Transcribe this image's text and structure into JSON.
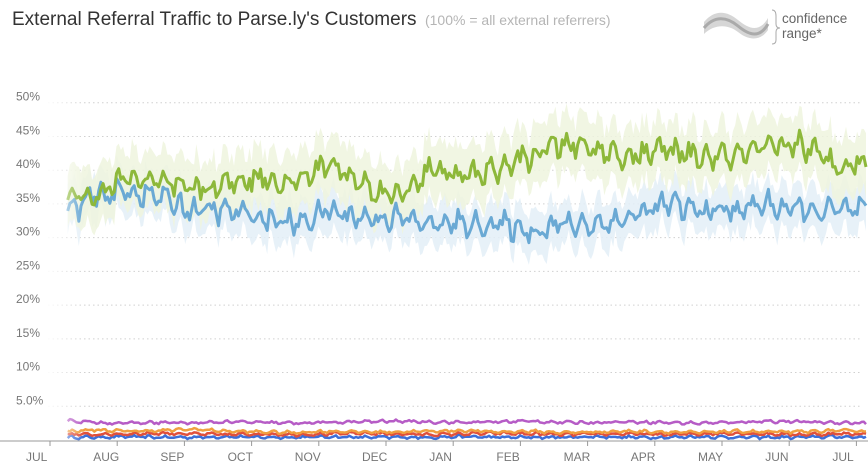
{
  "header": {
    "title": "External Referral Traffic to Parse.ly's Customers",
    "subtitle": "(100% = all external referrers)"
  },
  "legend": {
    "label_line1": "confidence",
    "label_line2": "range*",
    "icon": "wave-band-icon"
  },
  "colors": {
    "green": "#8db83a",
    "green_band": "#eef4de",
    "blue": "#6aa9d4",
    "blue_band": "#e3eff7",
    "purple": "#b65cc6",
    "orange": "#f0a040",
    "red": "#e0503c",
    "darkblue": "#3d6fd8",
    "grid": "#d0d0d0",
    "axis": "#999999"
  },
  "chart_data": {
    "type": "line",
    "title": "External Referral Traffic to Parse.ly's Customers",
    "subtitle": "(100% = all external referrers)",
    "xlabel": "",
    "ylabel": "",
    "ylim": [
      0,
      51
    ],
    "yticks": [
      "5.0%",
      "10%",
      "15%",
      "20%",
      "25%",
      "30%",
      "35%",
      "40%",
      "45%",
      "50%"
    ],
    "ytick_values": [
      5,
      10,
      15,
      20,
      25,
      30,
      35,
      40,
      45,
      50
    ],
    "months": [
      "JUL",
      "AUG",
      "SEP",
      "OCT",
      "NOV",
      "DEC",
      "JAN",
      "FEB",
      "MAR",
      "APR",
      "MAY",
      "JUN",
      "JUL"
    ],
    "grid": true,
    "x": [
      0,
      0.5,
      1,
      1.5,
      2,
      2.5,
      3,
      3.5,
      4,
      4.5,
      5,
      5.5,
      6,
      6.5,
      7,
      7.5,
      8,
      8.5,
      9,
      9.5,
      10,
      10.5,
      11,
      11.5,
      12,
      12.5
    ],
    "series": [
      {
        "name": "green",
        "color": "#8db83a",
        "band": 3.5,
        "values": [
          null,
          37,
          36,
          39,
          38,
          37,
          38,
          39,
          38,
          41,
          38,
          36,
          40,
          39,
          40,
          42,
          44,
          43,
          42,
          43,
          42,
          42,
          43,
          44,
          41,
          41
        ]
      },
      {
        "name": "blue",
        "color": "#6aa9d4",
        "band": 2.5,
        "values": [
          null,
          33,
          36,
          37,
          36,
          34,
          34,
          33,
          32,
          34,
          33,
          33,
          32,
          32,
          32,
          31,
          32,
          32,
          33,
          35,
          34,
          34,
          35,
          34,
          34,
          34
        ]
      },
      {
        "name": "purple",
        "color": "#b65cc6",
        "band": 0,
        "values": [
          null,
          3.0,
          2.6,
          2.5,
          2.6,
          2.5,
          2.7,
          2.6,
          2.5,
          2.6,
          2.7,
          2.8,
          2.7,
          2.6,
          2.7,
          2.8,
          2.6,
          2.6,
          2.7,
          2.6,
          2.5,
          2.6,
          2.8,
          2.7,
          2.6,
          2.5
        ]
      },
      {
        "name": "orange",
        "color": "#f0a040",
        "band": 0,
        "values": [
          null,
          1.2,
          1.5,
          1.3,
          1.4,
          1.6,
          1.3,
          1.2,
          1.1,
          1.3,
          1.2,
          1.2,
          1.3,
          1.4,
          1.2,
          1.3,
          1.1,
          1.2,
          1.3,
          1.2,
          1.1,
          1.3,
          1.2,
          1.2,
          1.4,
          1.3
        ]
      },
      {
        "name": "red",
        "color": "#e0503c",
        "band": 0,
        "values": [
          null,
          0.9,
          0.8,
          0.9,
          1.0,
          0.9,
          0.8,
          0.9,
          0.8,
          0.9,
          1.0,
          0.9,
          0.8,
          0.9,
          1.0,
          0.9,
          0.8,
          0.9,
          0.9,
          0.8,
          0.9,
          1.0,
          0.9,
          0.8,
          0.9,
          0.9
        ]
      },
      {
        "name": "darkblue",
        "color": "#3d6fd8",
        "band": 0,
        "values": [
          null,
          0.4,
          0.4,
          0.5,
          0.4,
          0.4,
          0.5,
          0.4,
          0.4,
          0.5,
          0.4,
          0.4,
          0.4,
          0.5,
          0.4,
          0.4,
          0.4,
          0.5,
          0.4,
          0.4,
          0.5,
          0.4,
          0.4,
          0.4,
          0.5,
          0.4
        ]
      }
    ]
  }
}
